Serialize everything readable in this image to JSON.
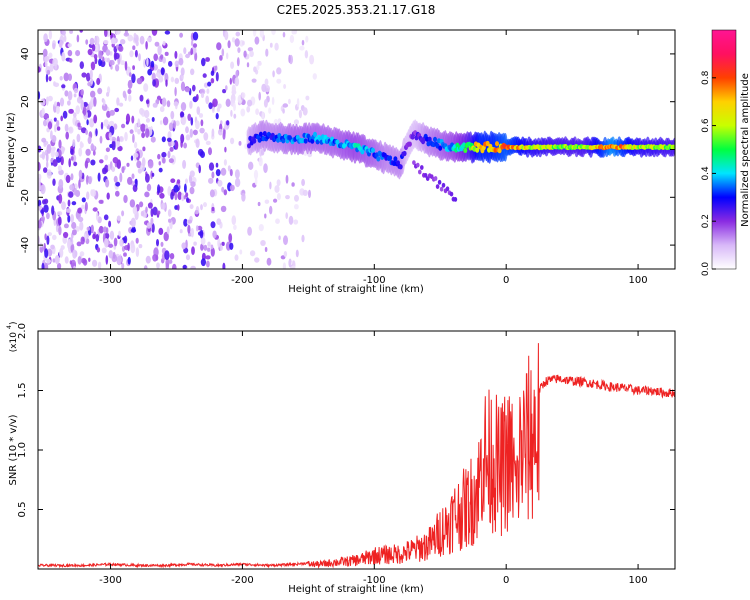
{
  "title": "C2E5.2025.353.21.17.G18",
  "chart_data": [
    {
      "type": "heatmap",
      "title": "C2E5.2025.353.21.17.G18",
      "xlabel": "Height of straight line (km)",
      "ylabel": "Frequency (Hz)",
      "xlim": [
        -355,
        128
      ],
      "ylim": [
        -50,
        50
      ],
      "x_ticks": [
        -300,
        -200,
        -100,
        0,
        100
      ],
      "x_tick_labels": [
        "-300",
        "-200",
        "-100",
        "0",
        "100"
      ],
      "y_ticks": [
        -40,
        -20,
        0,
        20,
        40
      ],
      "y_tick_labels": [
        "-40",
        "-20",
        "0",
        "20",
        "40"
      ],
      "colorbar": {
        "label": "Normalized spectral amplitude",
        "range": [
          0,
          1
        ],
        "ticks": [
          0.0,
          0.2,
          0.4,
          0.6,
          0.8
        ],
        "tick_labels": [
          "0.0",
          "0.2",
          "0.4",
          "0.6",
          "0.8"
        ],
        "colors": [
          "#ffffff",
          "#d8b8f8",
          "#8a2be2",
          "#0000ff",
          "#00e5ff",
          "#00ff40",
          "#c8ff00",
          "#ffd000",
          "#ff4000",
          "#ff1060",
          "#ff1493"
        ]
      },
      "trace": {
        "x": [
          -195,
          -185,
          -175,
          -160,
          -145,
          -130,
          -115,
          -100,
          -90,
          -80,
          -75,
          -70,
          -60,
          -50,
          -40,
          -30,
          -20,
          -10,
          0,
          20,
          40,
          60,
          80,
          100,
          128
        ],
        "y": [
          3,
          6,
          5,
          4,
          5,
          3,
          1,
          -2,
          -4,
          -6,
          2,
          6,
          4,
          2,
          1,
          1,
          1,
          1,
          1,
          1,
          1,
          1,
          1,
          1,
          1
        ],
        "amplitude": [
          0.25,
          0.3,
          0.3,
          0.35,
          0.35,
          0.35,
          0.4,
          0.35,
          0.3,
          0.3,
          0.2,
          0.2,
          0.3,
          0.35,
          0.4,
          0.5,
          0.7,
          0.7,
          0.75,
          0.6,
          0.55,
          0.55,
          0.8,
          0.6,
          0.55
        ]
      },
      "noise_region_x": [
        -355,
        -145
      ]
    },
    {
      "type": "line",
      "xlabel": "Height of straight line (km)",
      "ylabel": "SNR (10 * v/v)",
      "multiplier": "(x10",
      "multiplier_exp": "4",
      "xlim": [
        -355,
        128
      ],
      "ylim": [
        0,
        2.0
      ],
      "x_ticks": [
        -300,
        -200,
        -100,
        0,
        100
      ],
      "x_tick_labels": [
        "-300",
        "-200",
        "-100",
        "0",
        "100"
      ],
      "y_ticks": [
        0.5,
        1.0,
        1.5,
        2.0
      ],
      "y_tick_labels": [
        "0.5",
        "1.0",
        "1.5",
        "2.0"
      ],
      "color": "#ee2222",
      "series": [
        {
          "name": "SNR",
          "x": [
            -355,
            -340,
            -320,
            -300,
            -280,
            -260,
            -240,
            -220,
            -200,
            -180,
            -160,
            -150,
            -140,
            -130,
            -120,
            -110,
            -100,
            -90,
            -80,
            -70,
            -60,
            -55,
            -50,
            -45,
            -40,
            -35,
            -30,
            -25,
            -20,
            -18,
            -15,
            -12,
            -10,
            -5,
            0,
            5,
            8,
            10,
            15,
            20,
            25,
            30,
            40,
            50,
            60,
            70,
            80,
            90,
            100,
            110,
            120,
            128
          ],
          "y": [
            0.03,
            0.03,
            0.03,
            0.04,
            0.03,
            0.03,
            0.04,
            0.03,
            0.04,
            0.03,
            0.04,
            0.05,
            0.05,
            0.07,
            0.08,
            0.1,
            0.14,
            0.15,
            0.16,
            0.2,
            0.25,
            0.3,
            0.4,
            0.45,
            0.55,
            0.6,
            0.65,
            0.75,
            0.9,
            1.3,
            1.1,
            1.15,
            1.2,
            1.0,
            1.15,
            1.1,
            0.75,
            1.2,
            1.3,
            1.4,
            1.5,
            1.58,
            1.6,
            1.58,
            1.57,
            1.55,
            1.53,
            1.52,
            1.5,
            1.5,
            1.48,
            1.48
          ]
        }
      ]
    }
  ]
}
